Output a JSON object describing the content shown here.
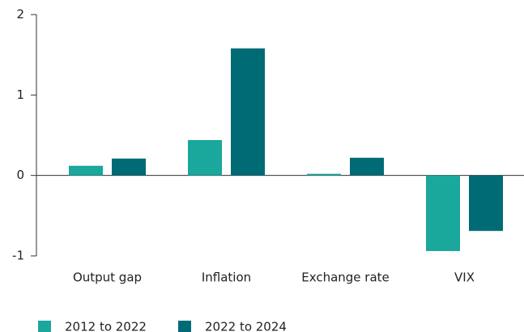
{
  "chart_data": {
    "type": "bar",
    "categories": [
      "Output gap",
      "Inflation",
      "Exchange rate",
      "VIX"
    ],
    "series": [
      {
        "name": "2012 to 2022",
        "color": "#1aa79c",
        "values": [
          0.12,
          0.44,
          0.02,
          -0.94
        ]
      },
      {
        "name": "2022 to 2024",
        "color": "#006b75",
        "values": [
          0.21,
          1.58,
          0.22,
          -0.69
        ]
      }
    ],
    "ylim": [
      -1,
      2
    ],
    "yticks": [
      -1,
      0,
      1,
      2
    ],
    "grid": false,
    "legend": "bottom"
  }
}
